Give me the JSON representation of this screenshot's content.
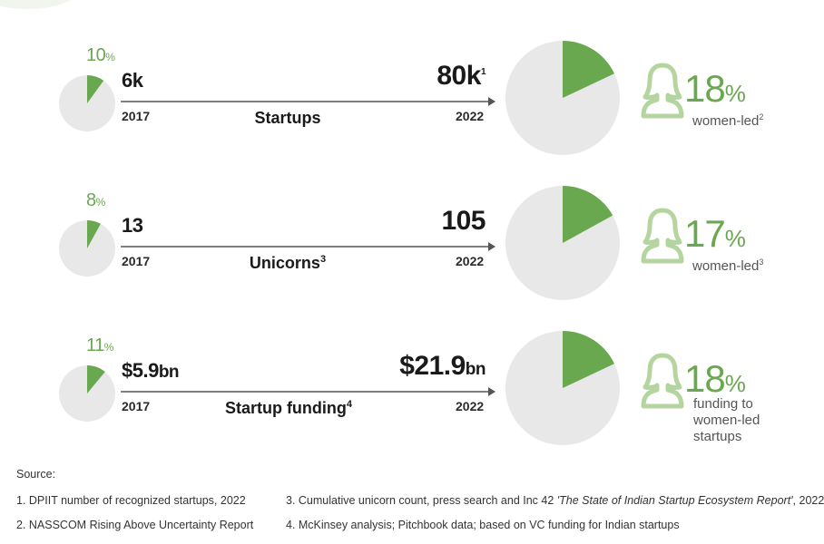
{
  "chart_data": {
    "type": "comparison-infographic",
    "rows": [
      {
        "metric": "Startups",
        "metric_sup": "",
        "from_year": "2017",
        "to_year": "2022",
        "from_value": "6k",
        "from_unit": "",
        "to_value": "80k",
        "to_unit": "",
        "to_sup": "1",
        "small_share_pct": 10,
        "small_share_label": "10",
        "big_share_pct": 18,
        "stat_value": "18",
        "stat_label_lines": [
          "women-led"
        ],
        "stat_sup": "2"
      },
      {
        "metric": "Unicorns",
        "metric_sup": "3",
        "from_year": "2017",
        "to_year": "2022",
        "from_value": "13",
        "from_unit": "",
        "to_value": "105",
        "to_unit": "",
        "to_sup": "",
        "small_share_pct": 8,
        "small_share_label": "8",
        "big_share_pct": 17,
        "stat_value": "17",
        "stat_label_lines": [
          "women-led"
        ],
        "stat_sup": "3"
      },
      {
        "metric": "Startup funding",
        "metric_sup": "4",
        "from_year": "2017",
        "to_year": "2022",
        "from_value": "$5.9",
        "from_unit": "bn",
        "to_value": "$21.9",
        "to_unit": "bn",
        "to_sup": "",
        "small_share_pct": 11,
        "small_share_label": "11",
        "big_share_pct": 18,
        "stat_value": "18",
        "stat_label_lines": [
          "funding to",
          "women-led",
          "startups"
        ],
        "stat_sup": ""
      }
    ],
    "percent_sign": "%",
    "colors": {
      "accent": "#6aa84f",
      "pie_bg": "#e8e8e8",
      "arrow": "#555555"
    }
  },
  "sources": {
    "heading": "Source:",
    "items": [
      {
        "text": "1. DPIIT number of recognized startups, 2022"
      },
      {
        "text": "2. NASSCOM Rising Above Uncertainty Report"
      },
      {
        "text": "3. Cumulative unicorn count, press search and Inc 42 ",
        "italic": "'The State of Indian Startup Ecosystem Report'",
        "tail": ", 2022"
      },
      {
        "text": "4. McKinsey analysis; Pitchbook data; based on VC funding for Indian startups"
      }
    ]
  }
}
